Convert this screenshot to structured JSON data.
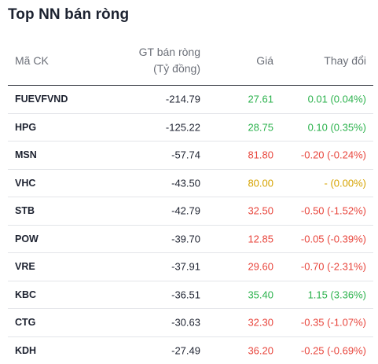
{
  "title": "Top NN bán ròng",
  "columns": {
    "code": "Mã CK",
    "value_line1": "GT bán ròng",
    "value_line2": "(Tỷ đồng)",
    "price": "Giá",
    "change": "Thay đổi"
  },
  "colors": {
    "up": "#2bb24c",
    "down": "#e8453c",
    "reference": "#d6a300"
  },
  "rows": [
    {
      "code": "FUEVFVND",
      "value": "-214.79",
      "price": "27.61",
      "change": "0.01 (0.04%)",
      "trend": "up"
    },
    {
      "code": "HPG",
      "value": "-125.22",
      "price": "28.75",
      "change": "0.10 (0.35%)",
      "trend": "up"
    },
    {
      "code": "MSN",
      "value": "-57.74",
      "price": "81.80",
      "change": "-0.20 (-0.24%)",
      "trend": "down"
    },
    {
      "code": "VHC",
      "value": "-43.50",
      "price": "80.00",
      "change": "- (0.00%)",
      "trend": "ref"
    },
    {
      "code": "STB",
      "value": "-42.79",
      "price": "32.50",
      "change": "-0.50 (-1.52%)",
      "trend": "down"
    },
    {
      "code": "POW",
      "value": "-39.70",
      "price": "12.85",
      "change": "-0.05 (-0.39%)",
      "trend": "down"
    },
    {
      "code": "VRE",
      "value": "-37.91",
      "price": "29.60",
      "change": "-0.70 (-2.31%)",
      "trend": "down"
    },
    {
      "code": "KBC",
      "value": "-36.51",
      "price": "35.40",
      "change": "1.15 (3.36%)",
      "trend": "up"
    },
    {
      "code": "CTG",
      "value": "-30.63",
      "price": "32.30",
      "change": "-0.35 (-1.07%)",
      "trend": "down"
    },
    {
      "code": "KDH",
      "value": "-27.49",
      "price": "36.20",
      "change": "-0.25 (-0.69%)",
      "trend": "down"
    }
  ]
}
